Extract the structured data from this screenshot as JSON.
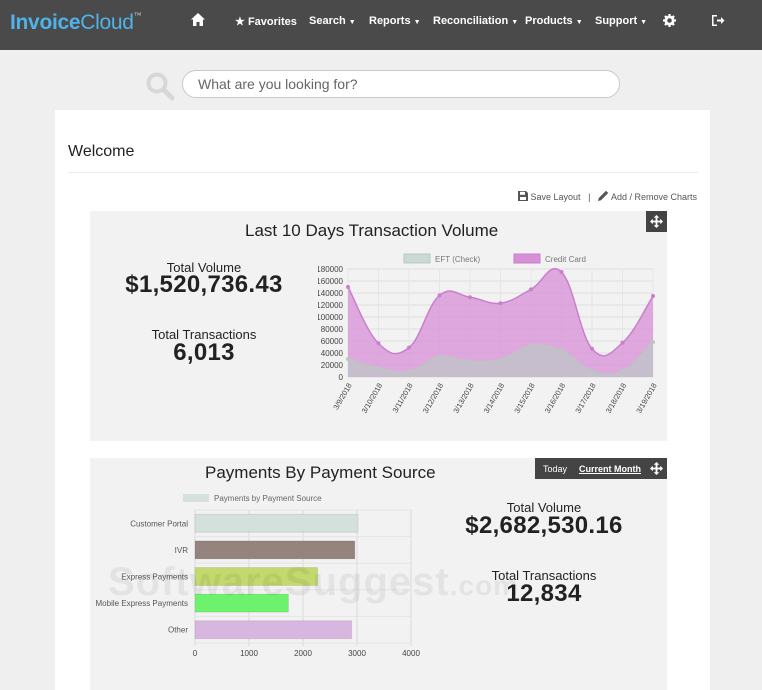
{
  "brand": {
    "part1": "Invoice",
    "part2": "Cloud",
    "tm": "™"
  },
  "nav": {
    "favorites": "Favorites",
    "search": "Search",
    "reports": "Reports",
    "reconciliation": "Reconciliation",
    "products": "Products",
    "support": "Support"
  },
  "search": {
    "placeholder": "What are you looking for?"
  },
  "page": {
    "title": "Welcome"
  },
  "toolbar": {
    "save_layout": "Save Layout",
    "separator": "|",
    "add_remove": "Add / Remove Charts"
  },
  "widget1": {
    "title": "Last 10 Days Transaction Volume",
    "total_volume_label": "Total Volume",
    "total_volume": "$1,520,736.43",
    "total_transactions_label": "Total Transactions",
    "total_transactions": "6,013"
  },
  "widget2": {
    "title": "Payments By Payment Source",
    "period_today": "Today",
    "period_current": "Current Month",
    "total_volume_label": "Total Volume",
    "total_volume": "$2,682,530.16",
    "total_transactions_label": "Total Transactions",
    "total_transactions": "12,834"
  },
  "colors": {
    "eft": "#c9d9d3",
    "credit": "#d78fd8",
    "credit_line": "#c97fcb",
    "header_bg": "#4a4a4a",
    "accent": "#4fb3e8"
  },
  "chart_data": [
    {
      "type": "area",
      "legend_position": "top",
      "x": [
        "3/9/2018",
        "3/10/2018",
        "3/11/2018",
        "3/12/2018",
        "3/13/2018",
        "3/14/2018",
        "3/15/2018",
        "3/16/2018",
        "3/17/2018",
        "3/18/2018",
        "3/19/2018"
      ],
      "ylim": [
        0,
        180000
      ],
      "yticks": [
        0,
        20000,
        40000,
        60000,
        80000,
        100000,
        120000,
        140000,
        160000,
        180000
      ],
      "series": [
        {
          "name": "EFT (Check)",
          "color": "#c9d9d3",
          "values": [
            30000,
            15000,
            9000,
            33000,
            26000,
            29000,
            52000,
            44000,
            10000,
            10000,
            58000
          ]
        },
        {
          "name": "Credit Card",
          "color": "#d78fd8",
          "values": [
            150000,
            56000,
            49000,
            136000,
            133000,
            123000,
            146000,
            175000,
            47000,
            57000,
            135000
          ]
        }
      ]
    },
    {
      "type": "bar",
      "orientation": "horizontal",
      "legend_position": "top",
      "categories": [
        "Customer Portal",
        "IVR",
        "Express Payments",
        "Mobile Express Payments",
        "Other"
      ],
      "values": [
        3020,
        2960,
        2270,
        1730,
        2900
      ],
      "colors": [
        "#d3e0db",
        "#95847e",
        "#c3d86d",
        "#6ef26e",
        "#d7b6e0"
      ],
      "xlim": [
        0,
        4000
      ],
      "xticks": [
        0,
        1000,
        2000,
        3000,
        4000
      ],
      "series_name": "Payments by Payment Source"
    }
  ],
  "watermark": {
    "text": "SoftwareSuggest",
    "suffix": ".com"
  }
}
